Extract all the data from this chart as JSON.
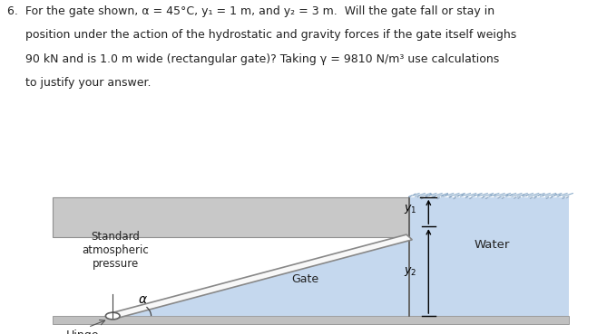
{
  "fig_width": 6.58,
  "fig_height": 3.69,
  "dpi": 100,
  "bg_color": "#ffffff",
  "water_color": "#c5d8ee",
  "shelf_color": "#c8c8c8",
  "floor_color": "#c0c0c0",
  "gate_face": "#f8f8f8",
  "gate_edge": "#888888",
  "line_color": "#555555",
  "text_color": "#222222",
  "wave_color": "#9ab0c8",
  "line1": "6.  For the gate shown, α = 45°C, y₁ = 1 m, and y₂ = 3 m.  Will the gate fall or stay in",
  "line2": "     position under the action of the hydrostatic and gravity forces if the gate itself weighs",
  "line3": "     90 kN and is 1.0 m wide (rectangular gate)? Taking γ = 9810 N/m³ use calculations",
  "line4": "     to justify your answer."
}
